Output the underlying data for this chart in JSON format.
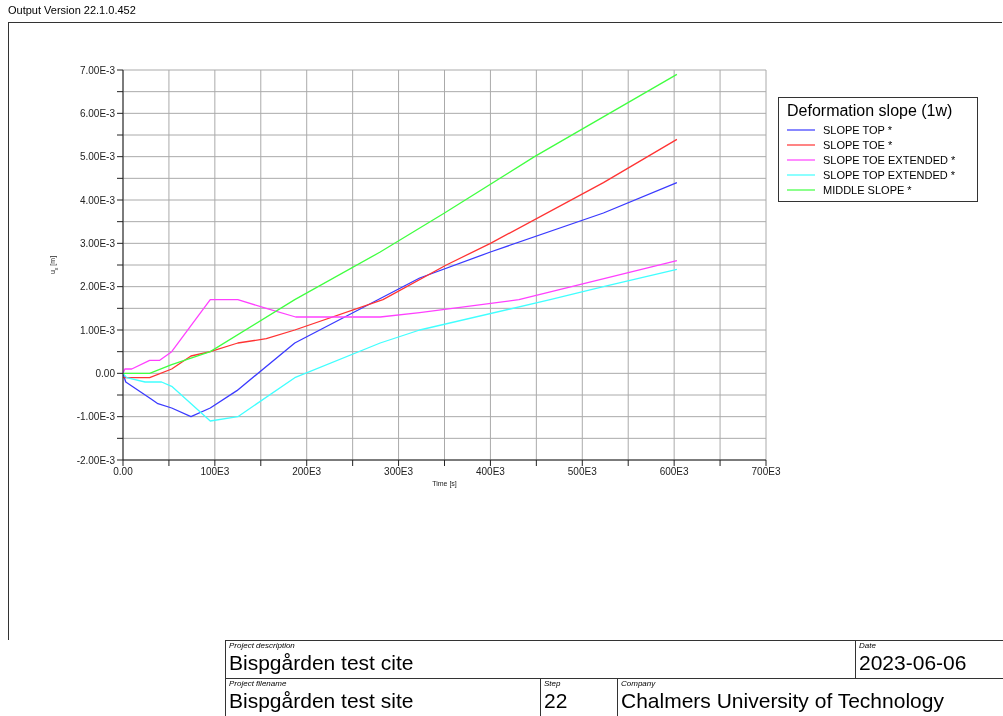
{
  "chart_data": {
    "type": "line",
    "legend_title": "Deformation slope (1w)",
    "xlabel": "Time [s]",
    "ylabel": "u$_{x}$ [m]",
    "xlim": [
      0,
      700000
    ],
    "ylim": [
      -0.002,
      0.007
    ],
    "xticks": [
      {
        "value": 0,
        "label": "0.00"
      },
      {
        "value": 50000,
        "label": null
      },
      {
        "value": 100000,
        "label": "100E3"
      },
      {
        "value": 150000,
        "label": null
      },
      {
        "value": 200000,
        "label": "200E3"
      },
      {
        "value": 250000,
        "label": null
      },
      {
        "value": 300000,
        "label": "300E3"
      },
      {
        "value": 350000,
        "label": null
      },
      {
        "value": 400000,
        "label": "400E3"
      },
      {
        "value": 450000,
        "label": null
      },
      {
        "value": 500000,
        "label": "500E3"
      },
      {
        "value": 550000,
        "label": null
      },
      {
        "value": 600000,
        "label": "600E3"
      },
      {
        "value": 650000,
        "label": null
      },
      {
        "value": 700000,
        "label": "700E3"
      }
    ],
    "yticks": [
      {
        "value": -0.002,
        "label": "-2.00E-3"
      },
      {
        "value": -0.0015,
        "label": null
      },
      {
        "value": -0.001,
        "label": "-1.00E-3"
      },
      {
        "value": -0.0005,
        "label": null
      },
      {
        "value": 0,
        "label": "0.00"
      },
      {
        "value": 0.0005,
        "label": null
      },
      {
        "value": 0.001,
        "label": "1.00E-3"
      },
      {
        "value": 0.0015,
        "label": null
      },
      {
        "value": 0.002,
        "label": "2.00E-3"
      },
      {
        "value": 0.0025,
        "label": null
      },
      {
        "value": 0.003,
        "label": "3.00E-3"
      },
      {
        "value": 0.0035,
        "label": null
      },
      {
        "value": 0.004,
        "label": "4.00E-3"
      },
      {
        "value": 0.0045,
        "label": null
      },
      {
        "value": 0.005,
        "label": "5.00E-3"
      },
      {
        "value": 0.0055,
        "label": null
      },
      {
        "value": 0.006,
        "label": "6.00E-3"
      },
      {
        "value": 0.0065,
        "label": null
      },
      {
        "value": 0.007,
        "label": "7.00E-3"
      }
    ],
    "grid": true,
    "legend": "top right",
    "marker": "none",
    "line_style": "solid",
    "series": [
      {
        "name": "SLOPE TOP *",
        "color": "#3a3aff",
        "x": [
          0,
          3000,
          31000,
          38000,
          53000,
          74000,
          95000,
          124000,
          187000,
          323000,
          400000,
          523000,
          603000
        ],
        "values": [
          0,
          -0.0002,
          -0.0006,
          -0.0007,
          -0.0008,
          -0.001,
          -0.0008,
          -0.0004,
          0.0007,
          0.0022,
          0.0028,
          0.0037,
          0.0044
        ]
      },
      {
        "name": "SLOPE TOE *",
        "color": "#ff3333",
        "x": [
          0,
          29000,
          53000,
          74000,
          95000,
          125000,
          156000,
          187000,
          283000,
          352000,
          400000,
          523000,
          603000
        ],
        "values": [
          -0.0001,
          -0.0001,
          0.0001,
          0.0004,
          0.0005,
          0.0007,
          0.0008,
          0.001,
          0.0017,
          0.0025,
          0.003,
          0.0044,
          0.0054
        ]
      },
      {
        "name": "SLOPE TOE EXTENDED *",
        "color": "#ff40ff",
        "x": [
          0,
          2000,
          9500,
          29000,
          40000,
          53000,
          95000,
          125000,
          156000,
          188000,
          280000,
          323000,
          431000,
          603000
        ],
        "values": [
          0,
          0.0001,
          0.0001,
          0.0003,
          0.0003,
          0.0005,
          0.0017,
          0.0017,
          0.0015,
          0.0013,
          0.0013,
          0.0014,
          0.0017,
          0.0026
        ]
      },
      {
        "name": "SLOPE TOP EXTENDED *",
        "color": "#40ffff",
        "x": [
          0,
          4000,
          24000,
          31000,
          42000,
          53000,
          95000,
          125000,
          187000,
          280000,
          323000,
          465000,
          523000,
          603000
        ],
        "values": [
          0,
          -0.0001,
          -0.0002,
          -0.0002,
          -0.0002,
          -0.0003,
          -0.0011,
          -0.001,
          -0.0001,
          0.0007,
          0.001,
          0.0017,
          0.002,
          0.0024
        ]
      },
      {
        "name": "MIDDLE SLOPE *",
        "color": "#40ff40",
        "x": [
          0,
          29000,
          53000,
          95000,
          187000,
          280000,
          350000,
          448000,
          603000
        ],
        "values": [
          0,
          0,
          0.0002,
          0.0005,
          0.0017,
          0.0028,
          0.0037,
          0.005,
          0.0069
        ]
      }
    ],
    "annotations": [
      "Output Version 22.1.0.452",
      "Project description",
      "Bispgården test cite",
      "Date",
      "2023-06-06",
      "Project filename",
      "Bispgården test site",
      "Step",
      "22",
      "Company",
      "Chalmers University of Technology"
    ]
  }
}
